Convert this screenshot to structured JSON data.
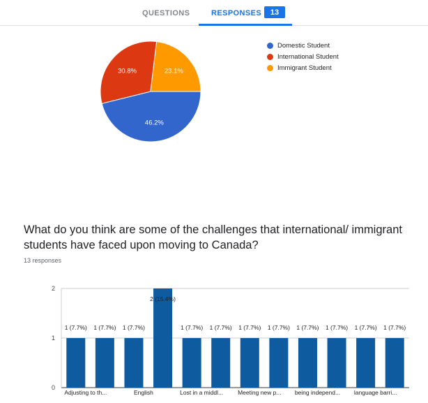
{
  "tabs": {
    "questions_label": "QUESTIONS",
    "responses_label": "RESPONSES",
    "responses_count": "13"
  },
  "pie_chart": {
    "chart_data": {
      "type": "pie",
      "slices": [
        {
          "label": "Domestic Student",
          "value": 46.2,
          "display": "46.2%",
          "color": "#3366cc"
        },
        {
          "label": "International Student",
          "value": 30.8,
          "display": "30.8%",
          "color": "#dc3912"
        },
        {
          "label": "Immigrant Student",
          "value": 23.1,
          "display": "23.1%",
          "color": "#ff9900"
        }
      ],
      "legend_position": "right"
    }
  },
  "question2": {
    "title": "What do you think are some of the challenges that international/ immigrant students have faced upon moving to Canada?",
    "responses": "13 responses"
  },
  "bar_chart": {
    "chart_data": {
      "type": "bar",
      "color": "#0f5b9f",
      "ylim": [
        0,
        2
      ],
      "yticks": [
        "0",
        "1",
        "2"
      ],
      "categories": [
        "Adjusting to th...",
        "",
        "English",
        "",
        "Lost in a middl...",
        "",
        "Meeting new p...",
        "",
        "being independ...",
        "",
        "language barri...",
        ""
      ],
      "values": [
        1,
        1,
        1,
        2,
        1,
        1,
        1,
        1,
        1,
        1,
        1,
        1
      ],
      "data_labels": [
        "1 (7.7%)",
        "1 (7.7%)",
        "1 (7.7%)",
        "2 (15.4%)",
        "1 (7.7%)",
        "1 (7.7%)",
        "1 (7.7%)",
        "1 (7.7%)",
        "1 (7.7%)",
        "1 (7.7%)",
        "1 (7.7%)",
        "1 (7.7%)"
      ]
    }
  }
}
